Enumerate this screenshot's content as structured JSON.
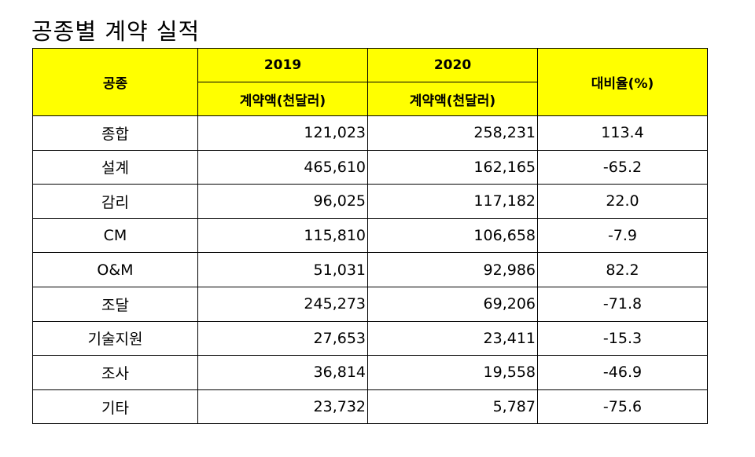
{
  "title": "공종별 계약 실적",
  "chart_data": {
    "type": "table",
    "header": {
      "category_label": "공종",
      "year1": "2019",
      "year2": "2020",
      "amount_label_1": "계약액(천달러)",
      "amount_label_2": "계약액(천달러)",
      "ratio_label": "대비율(%)"
    },
    "rows": [
      {
        "category": "종합",
        "y2019": "121,023",
        "y2020": "258,231",
        "ratio": "113.4"
      },
      {
        "category": "설계",
        "y2019": "465,610",
        "y2020": "162,165",
        "ratio": "-65.2"
      },
      {
        "category": "감리",
        "y2019": "96,025",
        "y2020": "117,182",
        "ratio": "22.0"
      },
      {
        "category": "CM",
        "y2019": "115,810",
        "y2020": "106,658",
        "ratio": "-7.9"
      },
      {
        "category": "O&M",
        "y2019": "51,031",
        "y2020": "92,986",
        "ratio": "82.2"
      },
      {
        "category": "조달",
        "y2019": "245,273",
        "y2020": "69,206",
        "ratio": "-71.8"
      },
      {
        "category": "기술지원",
        "y2019": "27,653",
        "y2020": "23,411",
        "ratio": "-15.3"
      },
      {
        "category": "조사",
        "y2019": "36,814",
        "y2020": "19,558",
        "ratio": "-46.9"
      },
      {
        "category": "기타",
        "y2019": "23,732",
        "y2020": "5,787",
        "ratio": "-75.6"
      }
    ],
    "colors": {
      "header_bg": "#ffff00"
    }
  }
}
